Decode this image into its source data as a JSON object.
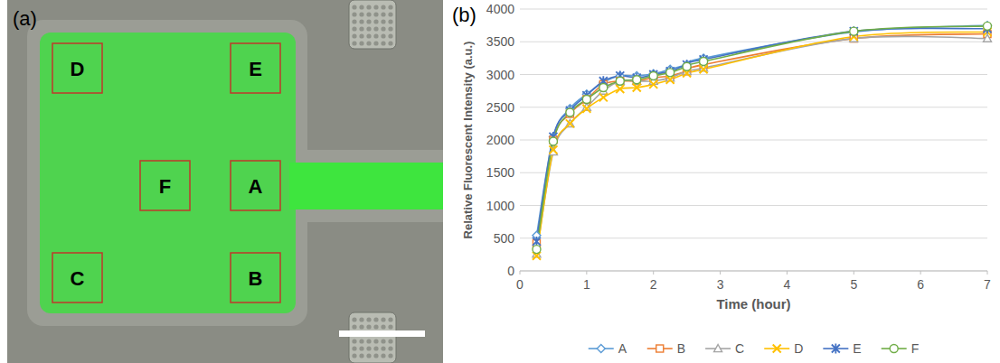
{
  "image_panel": {
    "letter": "(a)",
    "regions": [
      "D",
      "E",
      "F",
      "A",
      "C",
      "B"
    ]
  },
  "chart_data": {
    "type": "line",
    "panel_label": "(b)",
    "x_label": "Time (hour)",
    "y_label": "Relative Fluorescent Intensity (a.u.)",
    "x": [
      0.25,
      0.5,
      0.75,
      1,
      1.25,
      1.5,
      1.75,
      2,
      2.25,
      2.5,
      2.75,
      5,
      7
    ],
    "series": [
      {
        "name": "A",
        "color": "#5b9bd5",
        "marker": "diamond",
        "values": [
          540,
          2050,
          2480,
          2700,
          2880,
          2980,
          2980,
          3010,
          3080,
          3150,
          3250,
          3650,
          3750
        ]
      },
      {
        "name": "B",
        "color": "#ed7d31",
        "marker": "square",
        "values": [
          420,
          2000,
          2400,
          2620,
          2850,
          2900,
          2900,
          2950,
          2980,
          3050,
          3150,
          3550,
          3620
        ]
      },
      {
        "name": "C",
        "color": "#a5a5a5",
        "marker": "triangle",
        "values": [
          260,
          1820,
          2250,
          2500,
          2750,
          2900,
          2900,
          2900,
          2950,
          3050,
          3100,
          3550,
          3550
        ]
      },
      {
        "name": "D",
        "color": "#ffc000",
        "marker": "x",
        "values": [
          230,
          1850,
          2250,
          2480,
          2650,
          2780,
          2800,
          2850,
          2920,
          3020,
          3080,
          3580,
          3650
        ]
      },
      {
        "name": "E",
        "color": "#4472c4",
        "marker": "star",
        "values": [
          450,
          2050,
          2450,
          2680,
          2900,
          2980,
          2950,
          3000,
          3050,
          3150,
          3230,
          3660,
          3700
        ]
      },
      {
        "name": "F",
        "color": "#70ad47",
        "marker": "circle",
        "values": [
          330,
          1980,
          2420,
          2620,
          2800,
          2900,
          2920,
          2980,
          3030,
          3120,
          3200,
          3660,
          3740
        ]
      }
    ],
    "xlim": [
      0,
      7
    ],
    "xticks": [
      0,
      1,
      2,
      3,
      4,
      5,
      6,
      7
    ],
    "ylim": [
      0,
      4000
    ],
    "yticks": [
      0,
      500,
      1000,
      1500,
      2000,
      2500,
      3000,
      3500,
      4000
    ],
    "grid": true,
    "legend": "bottom"
  }
}
